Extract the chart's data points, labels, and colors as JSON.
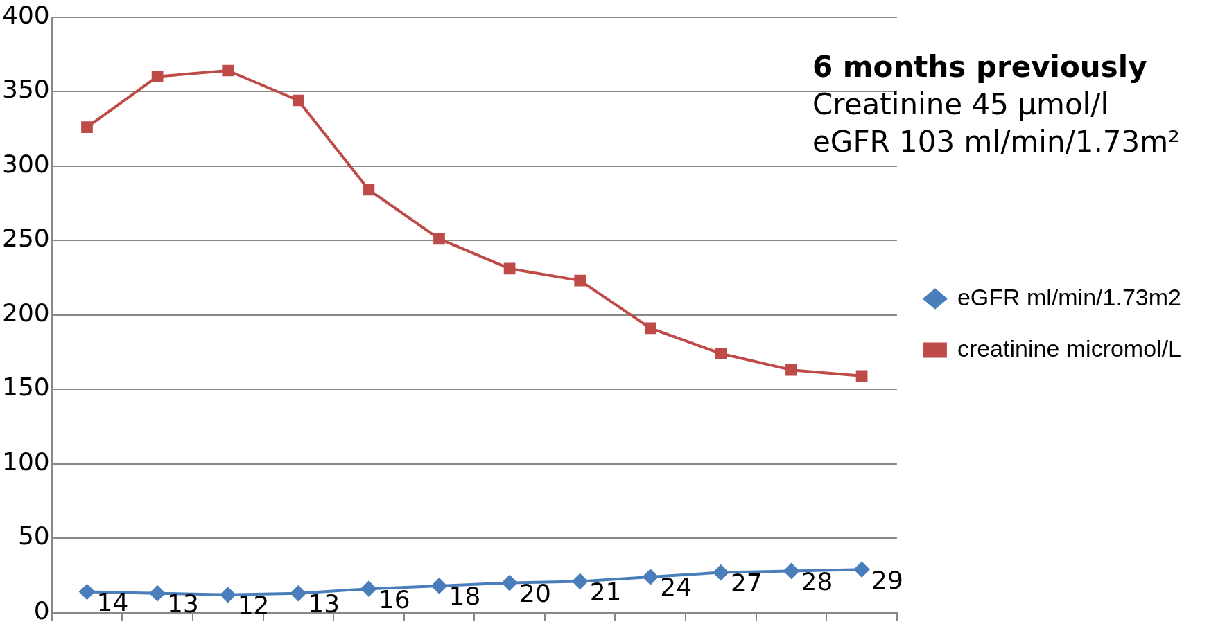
{
  "chart_data": {
    "type": "line",
    "categories": [
      null,
      null,
      null,
      null,
      null,
      null,
      null,
      null,
      null,
      null,
      null,
      null
    ],
    "series": [
      {
        "name": "eGFR ml/min/1.73m2",
        "color": "#4a7ebb",
        "marker": "diamond",
        "values": [
          14,
          13,
          12,
          13,
          16,
          18,
          20,
          21,
          24,
          27,
          28,
          29
        ],
        "value_labels": [
          "14",
          "13",
          "12",
          "13",
          "16",
          "18",
          "20",
          "21",
          "24",
          "27",
          "28",
          "29"
        ]
      },
      {
        "name": "creatinine micromol/L",
        "color": "#be4b48",
        "marker": "square",
        "values": [
          326,
          360,
          364,
          344,
          284,
          251,
          231,
          223,
          191,
          174,
          163,
          159
        ]
      }
    ],
    "ylim": [
      0,
      400
    ],
    "yticks": [
      0,
      50,
      100,
      150,
      200,
      250,
      300,
      350,
      400
    ],
    "grid": "y",
    "legend": "right",
    "line_style": "solid",
    "annotations": [
      "6 months previously",
      "Creatinine 45 µmol/l",
      "eGFR 103 ml/min/1.73m²"
    ]
  }
}
